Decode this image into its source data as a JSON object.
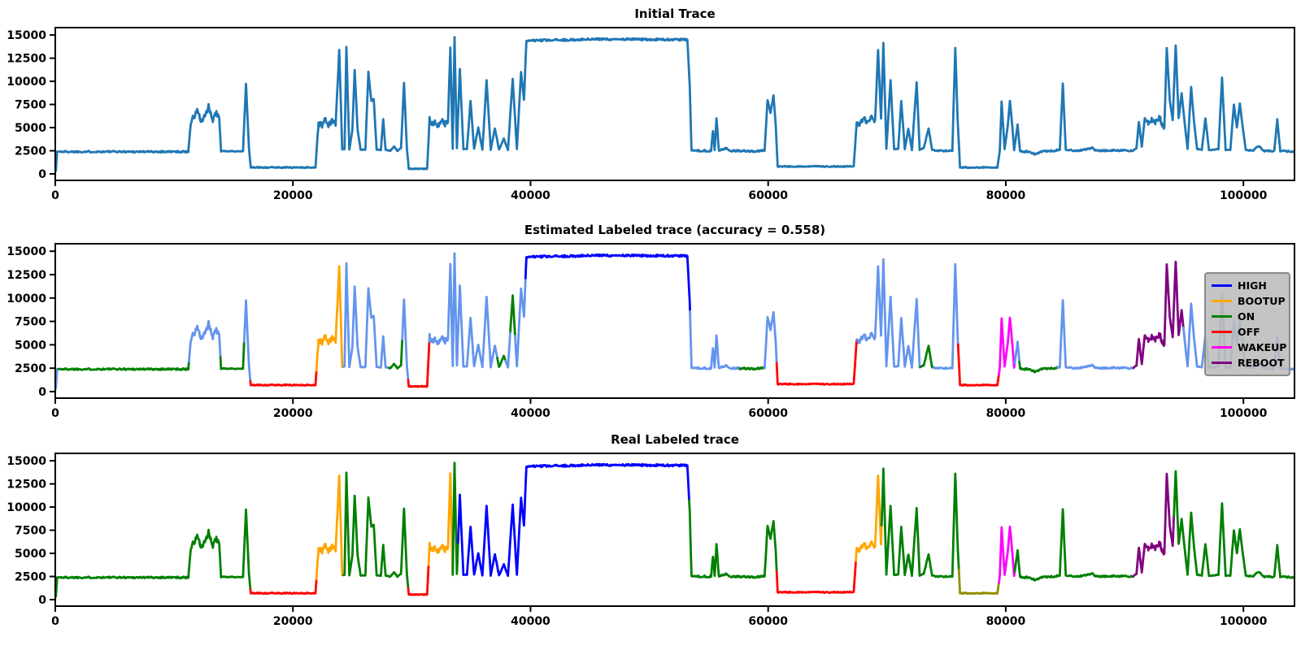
{
  "figure": {
    "background": "#ffffff"
  },
  "legend": {
    "entries": [
      {
        "label": "HIGH",
        "color": "#0000ff"
      },
      {
        "label": "BOOTUP",
        "color": "#ffa500"
      },
      {
        "label": "ON",
        "color": "#008000"
      },
      {
        "label": "OFF",
        "color": "#ff0000"
      },
      {
        "label": "WAKEUP",
        "color": "#ff00ff"
      },
      {
        "label": "REBOOT",
        "color": "#800080"
      }
    ]
  },
  "chart_data": {
    "type": "line",
    "x_unit": 1000,
    "xlim": [
      0,
      104300
    ],
    "ylim": [
      -700,
      15800
    ],
    "xticks": [
      0,
      20000,
      40000,
      60000,
      80000,
      100000
    ],
    "yticks": [
      0,
      2500,
      5000,
      7500,
      10000,
      12500,
      15000
    ],
    "grid": false,
    "label_colors": {
      "RAW": "#1f77b4",
      "OTHER": "#6495ed",
      "HIGH": "#0000ff",
      "BOOTUP": "#ffa500",
      "ON": "#008000",
      "OFF": "#ff0000",
      "WAKEUP": "#ff00ff",
      "REBOOT": "#800080",
      "IDLE": "#8f8f00"
    },
    "shared_waveform_anchors": [
      [
        0,
        2300
      ],
      [
        0.05,
        350
      ],
      [
        0.15,
        2400
      ],
      [
        11.2,
        2400
      ],
      [
        11.4,
        5600
      ],
      [
        11.7,
        6200
      ],
      [
        12,
        6900
      ],
      [
        12.25,
        5600
      ],
      [
        12.6,
        6100
      ],
      [
        12.9,
        7300
      ],
      [
        13.2,
        5800
      ],
      [
        13.55,
        6500
      ],
      [
        13.8,
        6100
      ],
      [
        13.95,
        2450
      ],
      [
        15.8,
        2450
      ],
      [
        16.05,
        9700
      ],
      [
        16.3,
        2800
      ],
      [
        16.45,
        700
      ],
      [
        21.9,
        700
      ],
      [
        22.15,
        5500
      ],
      [
        22.45,
        5250
      ],
      [
        22.7,
        5900
      ],
      [
        23,
        5300
      ],
      [
        23.35,
        5750
      ],
      [
        23.6,
        5350
      ],
      [
        23.9,
        13350
      ],
      [
        24.15,
        2650
      ],
      [
        24.35,
        2650
      ],
      [
        24.5,
        13700
      ],
      [
        24.75,
        2650
      ],
      [
        25,
        4700
      ],
      [
        25.2,
        11200
      ],
      [
        25.45,
        4700
      ],
      [
        25.7,
        2600
      ],
      [
        26.1,
        2600
      ],
      [
        26.35,
        11000
      ],
      [
        26.6,
        7900
      ],
      [
        26.8,
        8100
      ],
      [
        27.05,
        2600
      ],
      [
        27.4,
        2600
      ],
      [
        27.6,
        5900
      ],
      [
        27.8,
        2600
      ],
      [
        28.2,
        2500
      ],
      [
        28.5,
        2950
      ],
      [
        28.8,
        2500
      ],
      [
        29.1,
        2800
      ],
      [
        29.35,
        9800
      ],
      [
        29.6,
        2600
      ],
      [
        29.75,
        550
      ],
      [
        31.3,
        550
      ],
      [
        31.5,
        5900
      ],
      [
        31.7,
        5300
      ],
      [
        31.95,
        5650
      ],
      [
        32.2,
        5300
      ],
      [
        32.5,
        5800
      ],
      [
        32.8,
        5400
      ],
      [
        33.05,
        5600
      ],
      [
        33.25,
        13600
      ],
      [
        33.45,
        2700
      ],
      [
        33.6,
        14800
      ],
      [
        33.8,
        2750
      ],
      [
        34.05,
        11300
      ],
      [
        34.35,
        2700
      ],
      [
        34.65,
        2700
      ],
      [
        34.95,
        7900
      ],
      [
        35.25,
        2700
      ],
      [
        35.6,
        5000
      ],
      [
        35.95,
        2600
      ],
      [
        36.3,
        10100
      ],
      [
        36.65,
        2600
      ],
      [
        37,
        4900
      ],
      [
        37.35,
        2600
      ],
      [
        37.75,
        3800
      ],
      [
        38.1,
        2600
      ],
      [
        38.5,
        10300
      ],
      [
        38.85,
        2700
      ],
      [
        39.2,
        11000
      ],
      [
        39.45,
        8000
      ],
      [
        39.65,
        14350
      ],
      [
        40.3,
        14400
      ],
      [
        46,
        14550
      ],
      [
        53.2,
        14500
      ],
      [
        53.4,
        9500
      ],
      [
        53.55,
        2550
      ],
      [
        54.5,
        2500
      ],
      [
        55.2,
        2500
      ],
      [
        55.35,
        4700
      ],
      [
        55.5,
        2650
      ],
      [
        55.65,
        6000
      ],
      [
        55.85,
        2550
      ],
      [
        56.5,
        2750
      ],
      [
        56.8,
        2500
      ],
      [
        58.8,
        2450
      ],
      [
        59.7,
        2500
      ],
      [
        59.95,
        8000
      ],
      [
        60.2,
        6600
      ],
      [
        60.45,
        8500
      ],
      [
        60.65,
        5000
      ],
      [
        60.8,
        800
      ],
      [
        67.2,
        800
      ],
      [
        67.45,
        5500
      ],
      [
        67.7,
        5300
      ],
      [
        68,
        6100
      ],
      [
        68.35,
        5400
      ],
      [
        68.7,
        6300
      ],
      [
        69,
        5600
      ],
      [
        69.25,
        13400
      ],
      [
        69.5,
        6000
      ],
      [
        69.7,
        14100
      ],
      [
        69.95,
        2700
      ],
      [
        70.3,
        10100
      ],
      [
        70.6,
        2700
      ],
      [
        70.95,
        2700
      ],
      [
        71.2,
        7900
      ],
      [
        71.5,
        2700
      ],
      [
        71.8,
        4900
      ],
      [
        72.1,
        2600
      ],
      [
        72.5,
        9900
      ],
      [
        72.75,
        2600
      ],
      [
        73.1,
        2800
      ],
      [
        73.5,
        4900
      ],
      [
        73.8,
        2600
      ],
      [
        74.3,
        2500
      ],
      [
        75.5,
        2500
      ],
      [
        75.75,
        13600
      ],
      [
        75.95,
        5800
      ],
      [
        76.15,
        700
      ],
      [
        79.3,
        700
      ],
      [
        79.5,
        2600
      ],
      [
        79.65,
        7800
      ],
      [
        79.9,
        2700
      ],
      [
        80.15,
        5000
      ],
      [
        80.35,
        7900
      ],
      [
        80.55,
        5100
      ],
      [
        80.7,
        2600
      ],
      [
        81,
        5300
      ],
      [
        81.2,
        2450
      ],
      [
        82,
        2400
      ],
      [
        82.5,
        2100
      ],
      [
        83,
        2450
      ],
      [
        84,
        2500
      ],
      [
        84.55,
        2600
      ],
      [
        84.8,
        9800
      ],
      [
        85.05,
        2600
      ],
      [
        86,
        2500
      ],
      [
        87.3,
        2800
      ],
      [
        87.6,
        2500
      ],
      [
        89,
        2550
      ],
      [
        90.7,
        2500
      ],
      [
        91,
        2800
      ],
      [
        91.2,
        5600
      ],
      [
        91.45,
        2950
      ],
      [
        91.7,
        6000
      ],
      [
        92,
        5400
      ],
      [
        92.3,
        5800
      ],
      [
        92.6,
        5500
      ],
      [
        92.9,
        6200
      ],
      [
        93.15,
        5400
      ],
      [
        93.35,
        5000
      ],
      [
        93.55,
        13600
      ],
      [
        93.8,
        8000
      ],
      [
        94.05,
        5800
      ],
      [
        94.3,
        13900
      ],
      [
        94.55,
        6000
      ],
      [
        94.8,
        8700
      ],
      [
        95.05,
        5600
      ],
      [
        95.3,
        2700
      ],
      [
        95.6,
        9400
      ],
      [
        95.85,
        5600
      ],
      [
        96.1,
        2700
      ],
      [
        96.5,
        2600
      ],
      [
        96.8,
        6000
      ],
      [
        97.1,
        2600
      ],
      [
        97.5,
        2600
      ],
      [
        97.9,
        2700
      ],
      [
        98.2,
        10400
      ],
      [
        98.5,
        2600
      ],
      [
        98.9,
        2600
      ],
      [
        99.2,
        7500
      ],
      [
        99.45,
        5000
      ],
      [
        99.7,
        7600
      ],
      [
        99.95,
        5000
      ],
      [
        100.2,
        2600
      ],
      [
        100.8,
        2500
      ],
      [
        101.3,
        3050
      ],
      [
        101.7,
        2500
      ],
      [
        102.6,
        2450
      ],
      [
        102.85,
        5900
      ],
      [
        103.1,
        2500
      ],
      [
        104.2,
        2400
      ]
    ],
    "noise_regions": [
      [
        0.2,
        11.2,
        90
      ],
      [
        11.4,
        13.8,
        350
      ],
      [
        16.5,
        21.85,
        60
      ],
      [
        22.1,
        23.7,
        300
      ],
      [
        31.5,
        33.1,
        300
      ],
      [
        39.8,
        53.1,
        110
      ],
      [
        54,
        59.6,
        90
      ],
      [
        61,
        67.15,
        60
      ],
      [
        67.5,
        69.05,
        300
      ],
      [
        74,
        75.5,
        70
      ],
      [
        76.3,
        79.25,
        55
      ],
      [
        81.3,
        84.4,
        90
      ],
      [
        85.3,
        90.6,
        80
      ],
      [
        91.9,
        93.3,
        300
      ],
      [
        100.4,
        104.2,
        80
      ]
    ],
    "default_noise": 40,
    "plots": [
      {
        "title": "Initial Trace",
        "label_intervals": [
          [
            0,
            104.3,
            "RAW"
          ]
        ]
      },
      {
        "title": "Estimated Labeled trace (accuracy = 0.558)",
        "accuracy": 0.558,
        "legend": [
          "HIGH",
          "BOOTUP",
          "ON",
          "OFF",
          "WAKEUP",
          "REBOOT"
        ],
        "label_intervals": [
          [
            0,
            0.25,
            "OTHER"
          ],
          [
            0.25,
            11.25,
            "ON"
          ],
          [
            11.25,
            13.9,
            "OTHER"
          ],
          [
            13.9,
            15.9,
            "ON"
          ],
          [
            15.9,
            16.42,
            "OTHER"
          ],
          [
            16.42,
            21.98,
            "OFF"
          ],
          [
            21.98,
            24.25,
            "BOOTUP"
          ],
          [
            24.25,
            28.1,
            "OTHER"
          ],
          [
            28.1,
            29.2,
            "ON"
          ],
          [
            29.2,
            29.7,
            "OTHER"
          ],
          [
            29.7,
            31.48,
            "OFF"
          ],
          [
            31.48,
            37.2,
            "OTHER"
          ],
          [
            37.2,
            37.9,
            "ON"
          ],
          [
            37.9,
            38.3,
            "OTHER"
          ],
          [
            38.3,
            38.7,
            "ON"
          ],
          [
            38.7,
            39.58,
            "OTHER"
          ],
          [
            39.58,
            53.42,
            "HIGH"
          ],
          [
            53.42,
            57.6,
            "OTHER"
          ],
          [
            57.6,
            59.7,
            "ON"
          ],
          [
            59.7,
            60.72,
            "OTHER"
          ],
          [
            60.72,
            67.48,
            "OFF"
          ],
          [
            67.48,
            72.8,
            "OTHER"
          ],
          [
            72.8,
            73.95,
            "ON"
          ],
          [
            73.95,
            75.98,
            "OTHER"
          ],
          [
            75.98,
            79.42,
            "OFF"
          ],
          [
            79.42,
            80.75,
            "WAKEUP"
          ],
          [
            80.75,
            81.15,
            "OTHER"
          ],
          [
            81.15,
            84.35,
            "ON"
          ],
          [
            84.35,
            90.75,
            "OTHER"
          ],
          [
            90.75,
            94.95,
            "REBOOT"
          ],
          [
            94.95,
            104.3,
            "OTHER"
          ]
        ]
      },
      {
        "title": "Real Labeled trace",
        "label_intervals": [
          [
            0,
            16.42,
            "ON"
          ],
          [
            16.42,
            21.98,
            "OFF"
          ],
          [
            21.98,
            24.25,
            "BOOTUP"
          ],
          [
            24.25,
            29.7,
            "ON"
          ],
          [
            29.7,
            31.42,
            "OFF"
          ],
          [
            31.42,
            33.45,
            "BOOTUP"
          ],
          [
            33.45,
            33.9,
            "ON"
          ],
          [
            33.9,
            53.35,
            "HIGH"
          ],
          [
            53.35,
            60.72,
            "ON"
          ],
          [
            60.72,
            67.38,
            "OFF"
          ],
          [
            67.38,
            69.55,
            "BOOTUP"
          ],
          [
            69.55,
            76.05,
            "ON"
          ],
          [
            76.05,
            79.42,
            "IDLE"
          ],
          [
            79.42,
            80.75,
            "WAKEUP"
          ],
          [
            80.75,
            90.75,
            "ON"
          ],
          [
            90.75,
            94.15,
            "REBOOT"
          ],
          [
            94.15,
            104.3,
            "ON"
          ]
        ]
      }
    ]
  }
}
